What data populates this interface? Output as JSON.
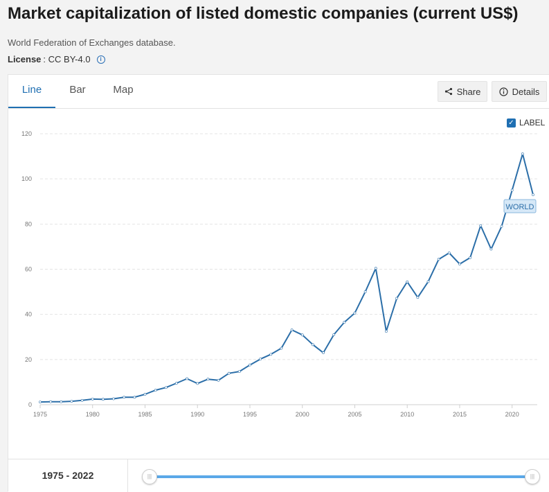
{
  "page": {
    "title": "Market capitalization of listed domestic companies (current US$)",
    "source": "World Federation of Exchanges database.",
    "license_label": "License",
    "license_value": ": CC BY-4.0"
  },
  "tabs": [
    {
      "label": "Line",
      "active": true
    },
    {
      "label": "Bar",
      "active": false
    },
    {
      "label": "Map",
      "active": false
    }
  ],
  "toolbar": {
    "share_label": "Share",
    "details_label": "Details"
  },
  "label_toggle": {
    "text": "LABEL",
    "checked": true
  },
  "footer": {
    "range_start": "1975",
    "range_sep": " - ",
    "range_end": "2022"
  },
  "colors": {
    "line": "#2b6ea8",
    "accent": "#1f6fb2",
    "slider": "#5aa8e8"
  },
  "chart_data": {
    "type": "line",
    "title": "Market capitalization of listed domestic companies (current US$)",
    "xlabel": "",
    "ylabel": "",
    "xlim": [
      1975,
      2022
    ],
    "ylim": [
      0,
      120
    ],
    "y_ticks": [
      0,
      20,
      40,
      60,
      80,
      100,
      120
    ],
    "x_ticks": [
      1975,
      1980,
      1985,
      1990,
      1995,
      2000,
      2005,
      2010,
      2015,
      2020
    ],
    "series": [
      {
        "name": "WORLD",
        "x": [
          1975,
          1976,
          1977,
          1978,
          1979,
          1980,
          1981,
          1982,
          1983,
          1984,
          1985,
          1986,
          1987,
          1988,
          1989,
          1990,
          1991,
          1992,
          1993,
          1994,
          1995,
          1996,
          1997,
          1998,
          1999,
          2000,
          2001,
          2002,
          2003,
          2004,
          2005,
          2006,
          2007,
          2008,
          2009,
          2010,
          2011,
          2012,
          2013,
          2014,
          2015,
          2016,
          2017,
          2018,
          2019,
          2020,
          2021,
          2022
        ],
        "values": [
          1.2,
          1.3,
          1.3,
          1.5,
          1.9,
          2.5,
          2.4,
          2.6,
          3.3,
          3.3,
          4.6,
          6.4,
          7.6,
          9.5,
          11.5,
          9.4,
          11.3,
          10.8,
          13.9,
          14.7,
          17.6,
          20.2,
          22.3,
          25.0,
          33.1,
          30.9,
          26.6,
          23.0,
          31.0,
          36.5,
          40.6,
          50.0,
          60.4,
          32.5,
          47.1,
          54.4,
          47.5,
          54.5,
          64.4,
          67.2,
          62.3,
          65.1,
          79.3,
          68.9,
          79.0,
          95.0,
          111.1,
          93.0
        ]
      }
    ],
    "series_label": "WORLD",
    "grid": true
  }
}
